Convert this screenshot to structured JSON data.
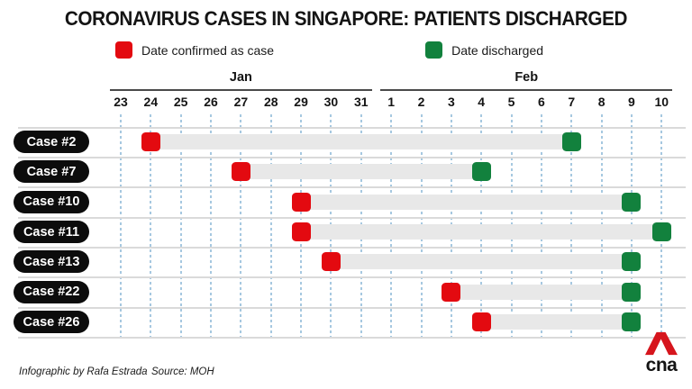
{
  "header": {
    "title": "CORONAVIRUS CASES IN SINGAPORE: PATIENTS DISCHARGED"
  },
  "legend": {
    "items": [
      {
        "name": "confirmed",
        "label": "Date confirmed as case",
        "color": "#e30a10"
      },
      {
        "name": "discharged",
        "label": "Date discharged",
        "color": "#12813d"
      }
    ]
  },
  "chart_data": {
    "type": "timeline",
    "months": [
      {
        "label": "Jan",
        "days": [
          23,
          24,
          25,
          26,
          27,
          28,
          29,
          30,
          31
        ]
      },
      {
        "label": "Feb",
        "days": [
          1,
          2,
          3,
          4,
          5,
          6,
          7,
          8,
          9,
          10
        ]
      }
    ],
    "rows": [
      {
        "label": "Case #2",
        "confirmed": "Jan 24",
        "discharged": "Feb 7"
      },
      {
        "label": "Case #7",
        "confirmed": "Jan 27",
        "discharged": "Feb 4"
      },
      {
        "label": "Case #10",
        "confirmed": "Jan 29",
        "discharged": "Feb 9"
      },
      {
        "label": "Case #11",
        "confirmed": "Jan 29",
        "discharged": "Feb 10"
      },
      {
        "label": "Case #13",
        "confirmed": "Jan 30",
        "discharged": "Feb 9"
      },
      {
        "label": "Case #22",
        "confirmed": "Feb 3",
        "discharged": "Feb 9"
      },
      {
        "label": "Case #26",
        "confirmed": "Feb 4",
        "discharged": "Feb 9"
      }
    ],
    "legend_position": "top",
    "grid": "vertical-dotted"
  },
  "colors": {
    "confirmed": "#e30a10",
    "discharged": "#12813d",
    "duration_bar": "#e8e8e8",
    "gridline": "#a6c8e0",
    "case_pill": "#0c0c0c",
    "logo_red": "#d6151d"
  },
  "footer": {
    "credit": "Infographic by Rafa Estrada",
    "source": "Source: MOH",
    "logo_text": "cna"
  }
}
